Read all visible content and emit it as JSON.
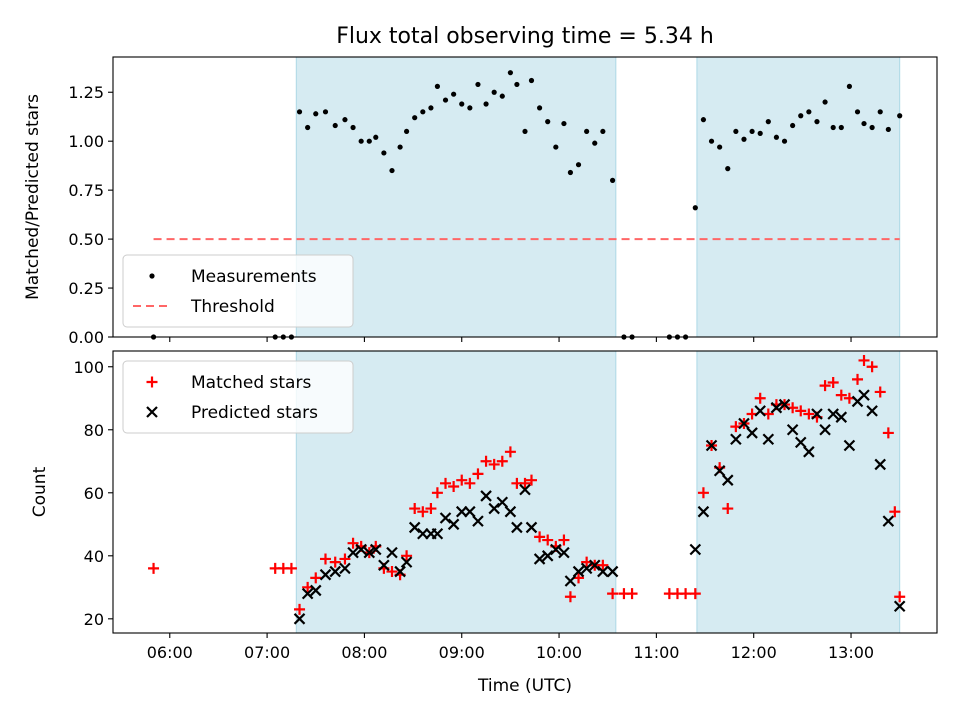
{
  "title": "Flux total observing time = 5.34 h",
  "colors": {
    "band": "#add8e6",
    "measurement": "#000000",
    "threshold": "#ff6666",
    "matched": "#ff0000",
    "predicted": "#000000"
  },
  "chart_data": [
    {
      "type": "scatter",
      "ylabel": "Matched/Predicted stars",
      "xlabel": "",
      "xlim": [
        "05:25",
        "13:53"
      ],
      "ylim": [
        0,
        1.43
      ],
      "yticks": [
        "0.00",
        "0.25",
        "0.50",
        "0.75",
        "1.00",
        "1.25"
      ],
      "xticks": [
        "06:00",
        "07:00",
        "08:00",
        "09:00",
        "10:00",
        "11:00",
        "12:00",
        "13:00"
      ],
      "grid": false,
      "legend_position": "lower-left",
      "shaded_intervals": [
        [
          "07:18",
          "10:35"
        ],
        [
          "11:25",
          "13:30"
        ]
      ],
      "threshold": {
        "name": "Threshold",
        "y": 0.5,
        "x": [
          "05:50",
          "13:30"
        ]
      },
      "series": [
        {
          "name": "Measurements",
          "marker": "dot",
          "points": [
            [
              "05:50",
              0.0
            ],
            [
              "07:05",
              0.0
            ],
            [
              "07:10",
              0.0
            ],
            [
              "07:15",
              0.0
            ],
            [
              "07:20",
              1.15
            ],
            [
              "07:25",
              1.07
            ],
            [
              "07:30",
              1.14
            ],
            [
              "07:36",
              1.15
            ],
            [
              "07:42",
              1.08
            ],
            [
              "07:48",
              1.11
            ],
            [
              "07:53",
              1.07
            ],
            [
              "07:58",
              1.0
            ],
            [
              "08:03",
              1.0
            ],
            [
              "08:07",
              1.02
            ],
            [
              "08:12",
              0.94
            ],
            [
              "08:17",
              0.85
            ],
            [
              "08:22",
              0.97
            ],
            [
              "08:26",
              1.05
            ],
            [
              "08:31",
              1.12
            ],
            [
              "08:36",
              1.15
            ],
            [
              "08:41",
              1.17
            ],
            [
              "08:45",
              1.28
            ],
            [
              "08:50",
              1.21
            ],
            [
              "08:55",
              1.24
            ],
            [
              "09:00",
              1.19
            ],
            [
              "09:05",
              1.17
            ],
            [
              "09:10",
              1.29
            ],
            [
              "09:15",
              1.19
            ],
            [
              "09:20",
              1.25
            ],
            [
              "09:25",
              1.23
            ],
            [
              "09:30",
              1.35
            ],
            [
              "09:34",
              1.29
            ],
            [
              "09:39",
              1.05
            ],
            [
              "09:43",
              1.31
            ],
            [
              "09:48",
              1.17
            ],
            [
              "09:53",
              1.1
            ],
            [
              "09:58",
              0.97
            ],
            [
              "10:03",
              1.09
            ],
            [
              "10:07",
              0.84
            ],
            [
              "10:12",
              0.88
            ],
            [
              "10:17",
              1.05
            ],
            [
              "10:22",
              0.99
            ],
            [
              "10:27",
              1.05
            ],
            [
              "10:33",
              0.8
            ],
            [
              "10:40",
              0.0
            ],
            [
              "10:45",
              0.0
            ],
            [
              "11:08",
              0.0
            ],
            [
              "11:13",
              0.0
            ],
            [
              "11:18",
              0.0
            ],
            [
              "11:24",
              0.66
            ],
            [
              "11:29",
              1.11
            ],
            [
              "11:34",
              1.0
            ],
            [
              "11:39",
              0.97
            ],
            [
              "11:44",
              0.86
            ],
            [
              "11:49",
              1.05
            ],
            [
              "11:54",
              1.01
            ],
            [
              "11:59",
              1.05
            ],
            [
              "12:04",
              1.04
            ],
            [
              "12:09",
              1.1
            ],
            [
              "12:14",
              1.02
            ],
            [
              "12:19",
              1.0
            ],
            [
              "12:24",
              1.08
            ],
            [
              "12:29",
              1.13
            ],
            [
              "12:34",
              1.15
            ],
            [
              "12:39",
              1.1
            ],
            [
              "12:44",
              1.2
            ],
            [
              "12:49",
              1.07
            ],
            [
              "12:54",
              1.07
            ],
            [
              "12:59",
              1.28
            ],
            [
              "13:04",
              1.15
            ],
            [
              "13:08",
              1.09
            ],
            [
              "13:13",
              1.07
            ],
            [
              "13:18",
              1.15
            ],
            [
              "13:23",
              1.06
            ],
            [
              "13:30",
              1.13
            ]
          ]
        }
      ]
    },
    {
      "type": "scatter",
      "ylabel": "Count",
      "xlabel": "Time (UTC)",
      "xlim": [
        "05:25",
        "13:53"
      ],
      "ylim": [
        15.5,
        105
      ],
      "yticks": [
        "20",
        "40",
        "60",
        "80",
        "100"
      ],
      "xticks": [
        "06:00",
        "07:00",
        "08:00",
        "09:00",
        "10:00",
        "11:00",
        "12:00",
        "13:00"
      ],
      "grid": false,
      "legend_position": "upper-left",
      "shaded_intervals": [
        [
          "07:18",
          "10:35"
        ],
        [
          "11:25",
          "13:30"
        ]
      ],
      "series": [
        {
          "name": "Matched stars",
          "marker": "plus",
          "points": [
            [
              "05:50",
              36
            ],
            [
              "07:05",
              36
            ],
            [
              "07:10",
              36
            ],
            [
              "07:15",
              36
            ],
            [
              "07:20",
              23
            ],
            [
              "07:25",
              30
            ],
            [
              "07:30",
              33
            ],
            [
              "07:36",
              39
            ],
            [
              "07:42",
              38
            ],
            [
              "07:48",
              39
            ],
            [
              "07:53",
              44
            ],
            [
              "07:58",
              43
            ],
            [
              "08:03",
              41
            ],
            [
              "08:07",
              43
            ],
            [
              "08:12",
              36
            ],
            [
              "08:17",
              35
            ],
            [
              "08:22",
              34
            ],
            [
              "08:26",
              40
            ],
            [
              "08:31",
              55
            ],
            [
              "08:36",
              54
            ],
            [
              "08:41",
              55
            ],
            [
              "08:45",
              60
            ],
            [
              "08:50",
              63
            ],
            [
              "08:55",
              62
            ],
            [
              "09:00",
              64
            ],
            [
              "09:05",
              63
            ],
            [
              "09:10",
              66
            ],
            [
              "09:15",
              70
            ],
            [
              "09:20",
              69
            ],
            [
              "09:25",
              70
            ],
            [
              "09:30",
              73
            ],
            [
              "09:34",
              63
            ],
            [
              "09:39",
              63
            ],
            [
              "09:43",
              64
            ],
            [
              "09:48",
              46
            ],
            [
              "09:53",
              45
            ],
            [
              "09:58",
              43
            ],
            [
              "10:03",
              45
            ],
            [
              "10:07",
              27
            ],
            [
              "10:12",
              33
            ],
            [
              "10:17",
              38
            ],
            [
              "10:22",
              37
            ],
            [
              "10:27",
              37
            ],
            [
              "10:33",
              28
            ],
            [
              "10:40",
              28
            ],
            [
              "10:45",
              28
            ],
            [
              "11:08",
              28
            ],
            [
              "11:13",
              28
            ],
            [
              "11:18",
              28
            ],
            [
              "11:24",
              28
            ],
            [
              "11:29",
              60
            ],
            [
              "11:34",
              75
            ],
            [
              "11:39",
              68
            ],
            [
              "11:44",
              55
            ],
            [
              "11:49",
              81
            ],
            [
              "11:54",
              82
            ],
            [
              "11:59",
              85
            ],
            [
              "12:04",
              90
            ],
            [
              "12:09",
              85
            ],
            [
              "12:14",
              88
            ],
            [
              "12:19",
              88
            ],
            [
              "12:24",
              87
            ],
            [
              "12:29",
              86
            ],
            [
              "12:34",
              85
            ],
            [
              "12:39",
              84
            ],
            [
              "12:44",
              94
            ],
            [
              "12:49",
              95
            ],
            [
              "12:54",
              91
            ],
            [
              "12:59",
              90
            ],
            [
              "13:04",
              96
            ],
            [
              "13:08",
              102
            ],
            [
              "13:13",
              100
            ],
            [
              "13:18",
              92
            ],
            [
              "13:23",
              79
            ],
            [
              "13:27",
              54
            ],
            [
              "13:30",
              27
            ]
          ]
        },
        {
          "name": "Predicted stars",
          "marker": "x",
          "points": [
            [
              "07:20",
              20
            ],
            [
              "07:25",
              28
            ],
            [
              "07:30",
              29
            ],
            [
              "07:36",
              34
            ],
            [
              "07:42",
              35
            ],
            [
              "07:48",
              36
            ],
            [
              "07:53",
              41
            ],
            [
              "07:58",
              42
            ],
            [
              "08:03",
              41
            ],
            [
              "08:07",
              42
            ],
            [
              "08:12",
              37
            ],
            [
              "08:17",
              41
            ],
            [
              "08:22",
              35
            ],
            [
              "08:26",
              38
            ],
            [
              "08:31",
              49
            ],
            [
              "08:36",
              47
            ],
            [
              "08:41",
              47
            ],
            [
              "08:45",
              47
            ],
            [
              "08:50",
              52
            ],
            [
              "08:55",
              50
            ],
            [
              "09:00",
              54
            ],
            [
              "09:05",
              54
            ],
            [
              "09:10",
              51
            ],
            [
              "09:15",
              59
            ],
            [
              "09:20",
              55
            ],
            [
              "09:25",
              57
            ],
            [
              "09:30",
              54
            ],
            [
              "09:34",
              49
            ],
            [
              "09:39",
              61
            ],
            [
              "09:43",
              49
            ],
            [
              "09:48",
              39
            ],
            [
              "09:53",
              40
            ],
            [
              "09:58",
              42
            ],
            [
              "10:03",
              41
            ],
            [
              "10:07",
              32
            ],
            [
              "10:12",
              35
            ],
            [
              "10:17",
              36
            ],
            [
              "10:22",
              37
            ],
            [
              "10:27",
              35
            ],
            [
              "10:33",
              35
            ],
            [
              "11:24",
              42
            ],
            [
              "11:29",
              54
            ],
            [
              "11:34",
              75
            ],
            [
              "11:39",
              67
            ],
            [
              "11:44",
              64
            ],
            [
              "11:49",
              77
            ],
            [
              "11:54",
              82
            ],
            [
              "11:59",
              79
            ],
            [
              "12:04",
              86
            ],
            [
              "12:09",
              77
            ],
            [
              "12:14",
              87
            ],
            [
              "12:19",
              88
            ],
            [
              "12:24",
              80
            ],
            [
              "12:29",
              76
            ],
            [
              "12:34",
              73
            ],
            [
              "12:39",
              85
            ],
            [
              "12:44",
              80
            ],
            [
              "12:49",
              85
            ],
            [
              "12:54",
              84
            ],
            [
              "12:59",
              75
            ],
            [
              "13:04",
              89
            ],
            [
              "13:08",
              91
            ],
            [
              "13:13",
              86
            ],
            [
              "13:18",
              69
            ],
            [
              "13:23",
              51
            ],
            [
              "13:30",
              24
            ]
          ]
        }
      ]
    }
  ]
}
